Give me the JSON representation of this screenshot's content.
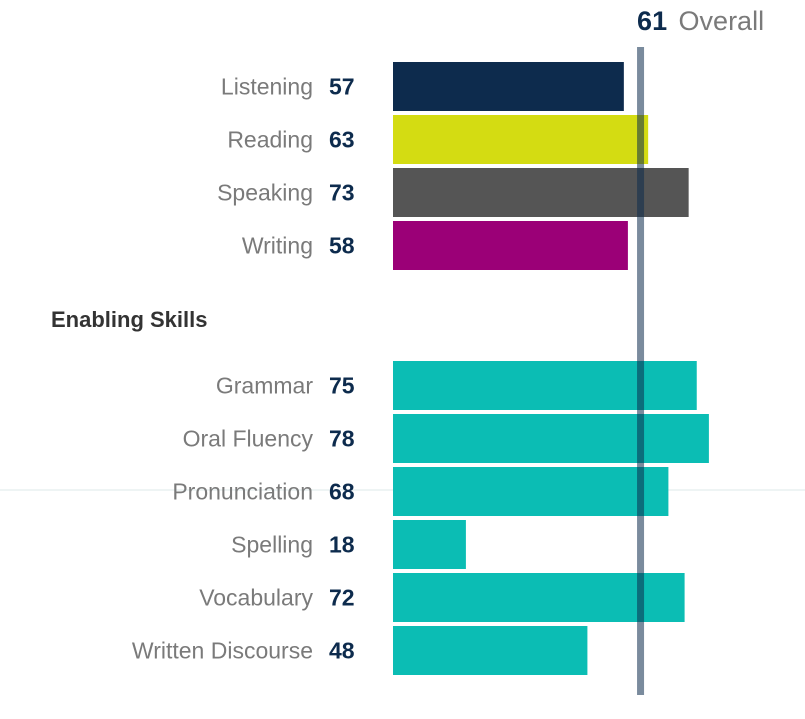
{
  "chart_data": {
    "type": "bar",
    "orientation": "horizontal",
    "overall": {
      "value": 61,
      "label": "Overall",
      "line_color": "#0d2b4d"
    },
    "groups": [
      {
        "title": "",
        "items": [
          {
            "label": "Listening",
            "value": 57,
            "color": "#0d2b4d"
          },
          {
            "label": "Reading",
            "value": 63,
            "color": "#d4dc12"
          },
          {
            "label": "Speaking",
            "value": 73,
            "color": "#555555"
          },
          {
            "label": "Writing",
            "value": 58,
            "color": "#9b0077"
          }
        ]
      },
      {
        "title": "Enabling Skills",
        "items": [
          {
            "label": "Grammar",
            "value": 75,
            "color": "#0bbdb4"
          },
          {
            "label": "Oral Fluency",
            "value": 78,
            "color": "#0bbdb4"
          },
          {
            "label": "Pronunciation",
            "value": 68,
            "color": "#0bbdb4"
          },
          {
            "label": "Spelling",
            "value": 18,
            "color": "#0bbdb4"
          },
          {
            "label": "Vocabulary",
            "value": 72,
            "color": "#0bbdb4"
          },
          {
            "label": "Written Discourse",
            "value": 48,
            "color": "#0bbdb4"
          }
        ]
      }
    ],
    "xlim": [
      0,
      90
    ]
  }
}
